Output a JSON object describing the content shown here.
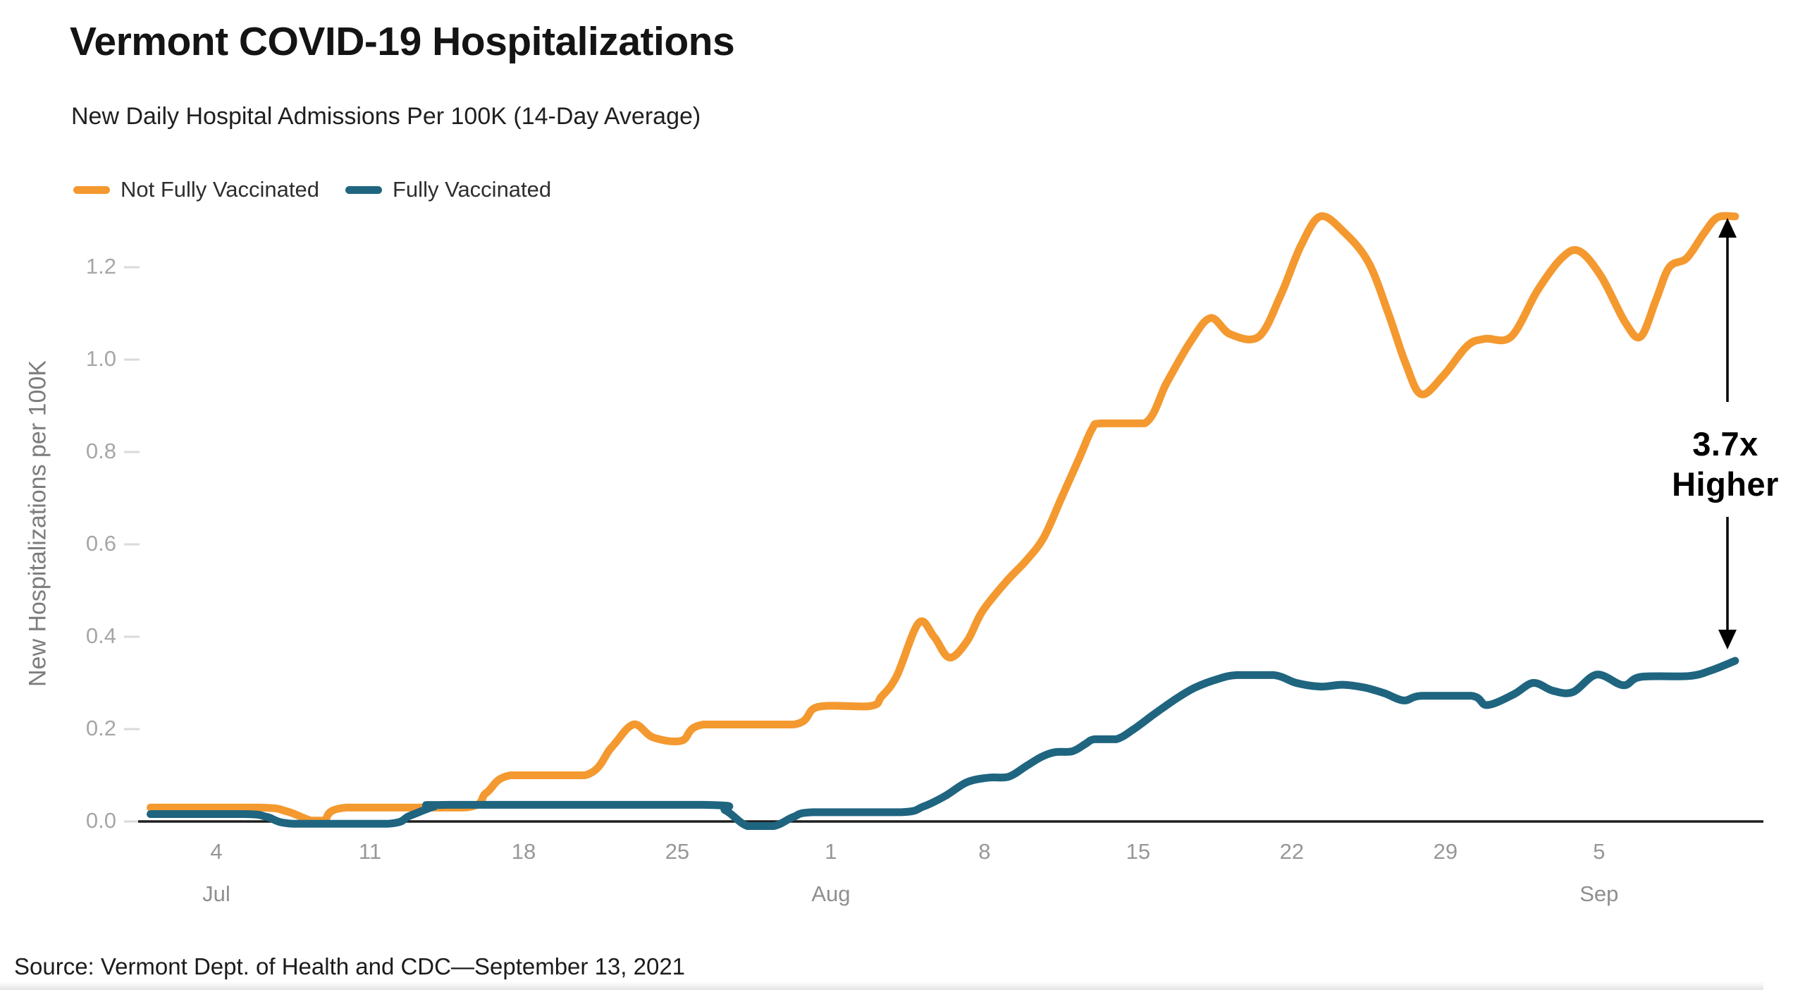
{
  "header": {
    "title": "Vermont COVID-19 Hospitalizations",
    "subtitle": "New Daily Hospital Admissions Per 100K (14-Day Average)"
  },
  "source_note": "Source: Vermont Dept. of Health and CDC—September 13, 2021",
  "annotation": {
    "line1": "3.7x",
    "line2": "Higher",
    "color": "#000000"
  },
  "colors": {
    "not_fully_vaccinated": "#F4992F",
    "fully_vaccinated": "#1F6580",
    "axis_line": "#1f1f1f",
    "tick_dash": "#dadada",
    "tick_label": "#a6a6a6"
  },
  "chart_data": {
    "type": "line",
    "title": "Vermont COVID-19 Hospitalizations",
    "subtitle": "New Daily Hospital Admissions Per 100K (14-Day Average)",
    "xlabel": "",
    "ylabel": "New Hospitalizations per 100K",
    "ylim": [
      0,
      1.32
    ],
    "grid": false,
    "legend_position": "top-left",
    "x_unit": "day index, Jul 1 2021 = 1 (Aug 1 = 32, Sep 1 = 63)",
    "y_ticks": [
      "0.0",
      "0.2",
      "0.4",
      "0.6",
      "0.8",
      "1.0",
      "1.2"
    ],
    "x_ticks": [
      {
        "day": 4,
        "label": "4"
      },
      {
        "day": 11,
        "label": "11"
      },
      {
        "day": 18,
        "label": "18"
      },
      {
        "day": 25,
        "label": "25"
      },
      {
        "day": 32,
        "label": "1"
      },
      {
        "day": 39,
        "label": "8"
      },
      {
        "day": 46,
        "label": "15"
      },
      {
        "day": 53,
        "label": "22"
      },
      {
        "day": 60,
        "label": "29"
      },
      {
        "day": 67,
        "label": "5"
      }
    ],
    "month_labels": [
      {
        "day": 4,
        "label": "Jul"
      },
      {
        "day": 32,
        "label": "Aug"
      },
      {
        "day": 67,
        "label": "Sep"
      }
    ],
    "series": [
      {
        "name": "Not Fully Vaccinated",
        "color": "#F4992F",
        "points": [
          [
            1,
            0.03
          ],
          [
            6,
            0.03
          ],
          [
            7.2,
            0.022
          ],
          [
            8.3,
            0.002
          ],
          [
            8.9,
            0.002
          ],
          [
            9.9,
            0.03
          ],
          [
            15.3,
            0.03
          ],
          [
            16.3,
            0.062
          ],
          [
            17.4,
            0.1
          ],
          [
            20.8,
            0.1
          ],
          [
            22,
            0.16
          ],
          [
            23,
            0.21
          ],
          [
            23.9,
            0.182
          ],
          [
            25.2,
            0.175
          ],
          [
            26.2,
            0.21
          ],
          [
            30.3,
            0.21
          ],
          [
            31.4,
            0.248
          ],
          [
            33.8,
            0.25
          ],
          [
            34.3,
            0.27
          ],
          [
            35,
            0.315
          ],
          [
            36,
            0.43
          ],
          [
            36.7,
            0.4
          ],
          [
            37.4,
            0.355
          ],
          [
            38.2,
            0.39
          ],
          [
            38.9,
            0.455
          ],
          [
            40,
            0.52
          ],
          [
            40.9,
            0.565
          ],
          [
            41.7,
            0.615
          ],
          [
            42.5,
            0.7
          ],
          [
            43.3,
            0.785
          ],
          [
            43.9,
            0.85
          ],
          [
            44.3,
            0.862
          ],
          [
            46.3,
            0.862
          ],
          [
            47.3,
            0.95
          ],
          [
            48.4,
            1.04
          ],
          [
            49.3,
            1.09
          ],
          [
            50.2,
            1.055
          ],
          [
            51.5,
            1.05
          ],
          [
            52.5,
            1.14
          ],
          [
            53.4,
            1.245
          ],
          [
            54.3,
            1.31
          ],
          [
            55.4,
            1.275
          ],
          [
            56.5,
            1.21
          ],
          [
            57.4,
            1.1
          ],
          [
            58.2,
            0.99
          ],
          [
            58.9,
            0.925
          ],
          [
            59.9,
            0.965
          ],
          [
            61,
            1.03
          ],
          [
            61.8,
            1.045
          ],
          [
            63,
            1.05
          ],
          [
            64.2,
            1.15
          ],
          [
            65.3,
            1.22
          ],
          [
            66.1,
            1.235
          ],
          [
            67.1,
            1.18
          ],
          [
            68.2,
            1.08
          ],
          [
            68.9,
            1.05
          ],
          [
            69.6,
            1.13
          ],
          [
            70.2,
            1.2
          ],
          [
            71,
            1.22
          ],
          [
            71.8,
            1.275
          ],
          [
            72.4,
            1.308
          ],
          [
            73.2,
            1.31
          ]
        ]
      },
      {
        "name": "Fully Vaccinated",
        "color": "#1F6580",
        "points": [
          [
            1,
            0.016
          ],
          [
            5.3,
            0.016
          ],
          [
            6.3,
            0.01
          ],
          [
            7.5,
            -0.005
          ],
          [
            11.8,
            -0.005
          ],
          [
            12.8,
            0.012
          ],
          [
            13.9,
            0.032
          ],
          [
            14.6,
            0.036
          ],
          [
            26.2,
            0.036
          ],
          [
            27.2,
            0.024
          ],
          [
            28.2,
            -0.01
          ],
          [
            29.4,
            -0.01
          ],
          [
            30.3,
            0.01
          ],
          [
            31.2,
            0.02
          ],
          [
            35.2,
            0.02
          ],
          [
            36.2,
            0.032
          ],
          [
            37.2,
            0.055
          ],
          [
            38.2,
            0.085
          ],
          [
            39.2,
            0.095
          ],
          [
            40.1,
            0.097
          ],
          [
            40.9,
            0.12
          ],
          [
            41.6,
            0.14
          ],
          [
            42.2,
            0.15
          ],
          [
            43,
            0.152
          ],
          [
            43.6,
            0.168
          ],
          [
            44,
            0.178
          ],
          [
            45,
            0.178
          ],
          [
            45.8,
            0.2
          ],
          [
            46.8,
            0.235
          ],
          [
            47.8,
            0.268
          ],
          [
            48.6,
            0.29
          ],
          [
            49.6,
            0.308
          ],
          [
            50.5,
            0.317
          ],
          [
            52.2,
            0.317
          ],
          [
            53.2,
            0.3
          ],
          [
            54.3,
            0.292
          ],
          [
            55.3,
            0.296
          ],
          [
            56.3,
            0.29
          ],
          [
            57.2,
            0.278
          ],
          [
            58.1,
            0.262
          ],
          [
            58.9,
            0.272
          ],
          [
            61.2,
            0.272
          ],
          [
            61.9,
            0.252
          ],
          [
            63.1,
            0.275
          ],
          [
            64,
            0.3
          ],
          [
            64.9,
            0.283
          ],
          [
            65.8,
            0.28
          ],
          [
            66.9,
            0.318
          ],
          [
            68.1,
            0.295
          ],
          [
            68.9,
            0.313
          ],
          [
            71.1,
            0.315
          ],
          [
            72.1,
            0.327
          ],
          [
            73.2,
            0.348
          ]
        ]
      }
    ],
    "annotation": {
      "label": "3.7x Higher",
      "meaning": "orange end (~1.31) vs teal end (~0.35)"
    }
  }
}
